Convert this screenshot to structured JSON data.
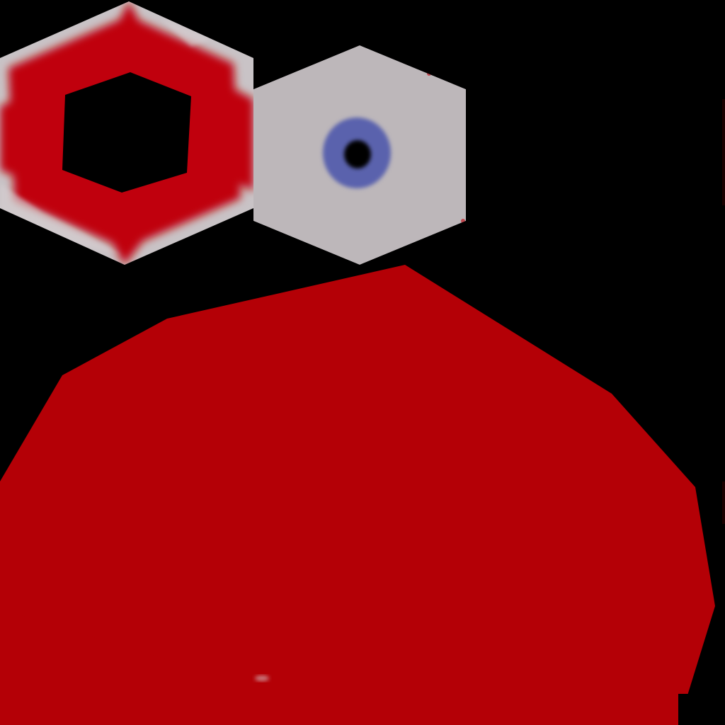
{
  "colors": {
    "background": "#000000",
    "red": "#b40006",
    "red_bright": "#c8000a",
    "pale_gray": "#bdb7ba",
    "pale_gray_light": "#c9c3c6",
    "blue_ring": "#5a62ad",
    "eye_center": "#000000"
  },
  "shapes": {
    "left_hexagon": "hexagon-ring",
    "right_hexagon": "hexagon-with-eye",
    "lower_blob": "polygon"
  }
}
